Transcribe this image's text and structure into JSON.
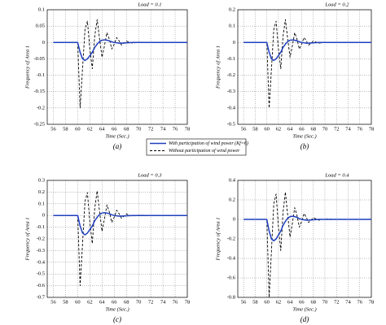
{
  "chart_data": [
    {
      "type": "line",
      "title": "Load = 0.1",
      "xlabel": "Time (Sec.)",
      "ylabel": "Frequency of Area 1",
      "caption": "(a)",
      "x": [
        56,
        60,
        60.4,
        60.8,
        61.2,
        61.6,
        62,
        62.4,
        62.8,
        63.2,
        63.6,
        64,
        64.4,
        64.8,
        65.2,
        65.6,
        66,
        66.4,
        66.8,
        67.2,
        68,
        69,
        70,
        72,
        78
      ],
      "series": [
        {
          "name": "With participation of wind power (Kf=6)",
          "color": "#1f3fbf",
          "dashed": false,
          "values": [
            0,
            0,
            -0.03,
            -0.05,
            -0.055,
            -0.05,
            -0.04,
            -0.03,
            -0.015,
            -0.005,
            0.003,
            0.007,
            0.008,
            0.007,
            0.005,
            0.002,
            0,
            -0.001,
            -0.002,
            -0.002,
            -0.001,
            0,
            0,
            0,
            0
          ]
        },
        {
          "name": "Without participation of wind power",
          "color": "#000000",
          "dashed": true,
          "values": [
            0,
            0,
            -0.2,
            -0.08,
            0.04,
            0.065,
            -0.02,
            -0.08,
            0.02,
            0.07,
            0.01,
            -0.045,
            -0.01,
            0.03,
            0.01,
            -0.02,
            -0.005,
            0.015,
            0.005,
            -0.008,
            0.004,
            -0.002,
            0.001,
            0,
            0
          ]
        }
      ],
      "xlim": [
        55,
        78
      ],
      "xticks": [
        56,
        58,
        60,
        62,
        64,
        66,
        68,
        70,
        72,
        74,
        76,
        78
      ],
      "ylim": [
        -0.25,
        0.1
      ],
      "yticks": [
        0.1,
        0.05,
        0,
        -0.05,
        -0.1,
        -0.15,
        -0.2,
        -0.25
      ],
      "grid": true
    },
    {
      "type": "line",
      "title": "Load = 0.2",
      "xlabel": "Time (Sec.)",
      "ylabel": "Frequency of Area 1",
      "caption": "(b)",
      "x": [
        56,
        60,
        60.4,
        60.8,
        61.2,
        61.6,
        62,
        62.4,
        62.8,
        63.2,
        63.6,
        64,
        64.4,
        64.8,
        65.2,
        65.6,
        66,
        66.4,
        66.8,
        67.2,
        68,
        69,
        70,
        72,
        78
      ],
      "series": [
        {
          "color": "#1f3fbf",
          "dashed": false,
          "values": [
            0,
            0,
            -0.06,
            -0.1,
            -0.11,
            -0.1,
            -0.08,
            -0.06,
            -0.03,
            -0.01,
            0.006,
            0.014,
            0.016,
            0.014,
            0.01,
            0.004,
            0,
            -0.002,
            -0.004,
            -0.004,
            -0.002,
            0,
            0,
            0,
            0
          ]
        },
        {
          "color": "#000000",
          "dashed": true,
          "values": [
            0,
            0,
            -0.4,
            -0.16,
            0.08,
            0.13,
            -0.04,
            -0.16,
            0.04,
            0.14,
            0.02,
            -0.09,
            -0.02,
            0.06,
            0.02,
            -0.04,
            -0.01,
            0.03,
            0.01,
            -0.016,
            0.008,
            -0.004,
            0.002,
            0,
            0
          ]
        }
      ],
      "xlim": [
        55,
        78
      ],
      "xticks": [
        56,
        58,
        60,
        62,
        64,
        66,
        68,
        70,
        72,
        74,
        76,
        78
      ],
      "ylim": [
        -0.5,
        0.2
      ],
      "yticks": [
        0.2,
        0.1,
        0,
        -0.1,
        -0.2,
        -0.3,
        -0.4,
        -0.5
      ],
      "grid": true
    },
    {
      "type": "line",
      "title": "Load = 0.3",
      "xlabel": "Time (Sec.)",
      "ylabel": "Frequency of Area 1",
      "caption": "(c)",
      "x": [
        56,
        60,
        60.4,
        60.8,
        61.2,
        61.6,
        62,
        62.4,
        62.8,
        63.2,
        63.6,
        64,
        64.4,
        64.8,
        65.2,
        65.6,
        66,
        66.4,
        66.8,
        67.2,
        68,
        69,
        70,
        72,
        78
      ],
      "series": [
        {
          "color": "#1f3fbf",
          "dashed": false,
          "values": [
            0,
            0,
            -0.09,
            -0.15,
            -0.165,
            -0.15,
            -0.12,
            -0.09,
            -0.045,
            -0.015,
            0.009,
            0.021,
            0.024,
            0.021,
            0.015,
            0.006,
            0,
            -0.003,
            -0.006,
            -0.006,
            -0.003,
            0,
            0,
            0,
            0
          ]
        },
        {
          "color": "#000000",
          "dashed": true,
          "values": [
            0,
            0,
            -0.6,
            -0.24,
            0.12,
            0.195,
            -0.06,
            -0.24,
            0.06,
            0.21,
            0.03,
            -0.135,
            -0.03,
            0.09,
            0.03,
            -0.06,
            -0.015,
            0.045,
            0.015,
            -0.024,
            0.012,
            -0.006,
            0.003,
            0,
            0
          ]
        }
      ],
      "xlim": [
        55,
        78
      ],
      "xticks": [
        56,
        58,
        60,
        62,
        64,
        66,
        68,
        70,
        72,
        74,
        76,
        78
      ],
      "ylim": [
        -0.7,
        0.3
      ],
      "yticks": [
        0.3,
        0.2,
        0.1,
        0,
        -0.1,
        -0.2,
        -0.3,
        -0.4,
        -0.5,
        -0.6,
        -0.7
      ],
      "grid": true
    },
    {
      "type": "line",
      "title": "Load = 0.4",
      "xlabel": "Time (Sec.)",
      "ylabel": "Frequency of Area 1",
      "caption": "(d)",
      "x": [
        56,
        60,
        60.4,
        60.8,
        61.2,
        61.6,
        62,
        62.4,
        62.8,
        63.2,
        63.6,
        64,
        64.4,
        64.8,
        65.2,
        65.6,
        66,
        66.4,
        66.8,
        67.2,
        68,
        69,
        70,
        72,
        78
      ],
      "series": [
        {
          "color": "#1f3fbf",
          "dashed": false,
          "values": [
            0,
            0,
            -0.12,
            -0.2,
            -0.22,
            -0.2,
            -0.16,
            -0.12,
            -0.06,
            -0.02,
            0.012,
            0.028,
            0.032,
            0.028,
            0.02,
            0.008,
            0,
            -0.004,
            -0.008,
            -0.008,
            -0.004,
            0,
            0,
            0,
            0
          ]
        },
        {
          "color": "#000000",
          "dashed": true,
          "values": [
            0,
            0,
            -0.8,
            -0.32,
            0.16,
            0.26,
            -0.08,
            -0.32,
            0.08,
            0.28,
            0.04,
            -0.18,
            -0.04,
            0.12,
            0.04,
            -0.08,
            -0.02,
            0.06,
            0.02,
            -0.032,
            0.016,
            -0.008,
            0.004,
            0,
            0
          ]
        }
      ],
      "xlim": [
        55,
        78
      ],
      "xticks": [
        56,
        58,
        60,
        62,
        64,
        66,
        68,
        70,
        72,
        74,
        76,
        78
      ],
      "ylim": [
        -0.8,
        0.4
      ],
      "yticks": [
        0.4,
        0.2,
        0,
        -0.2,
        -0.4,
        -0.6,
        -0.8
      ],
      "grid": true
    }
  ]
}
